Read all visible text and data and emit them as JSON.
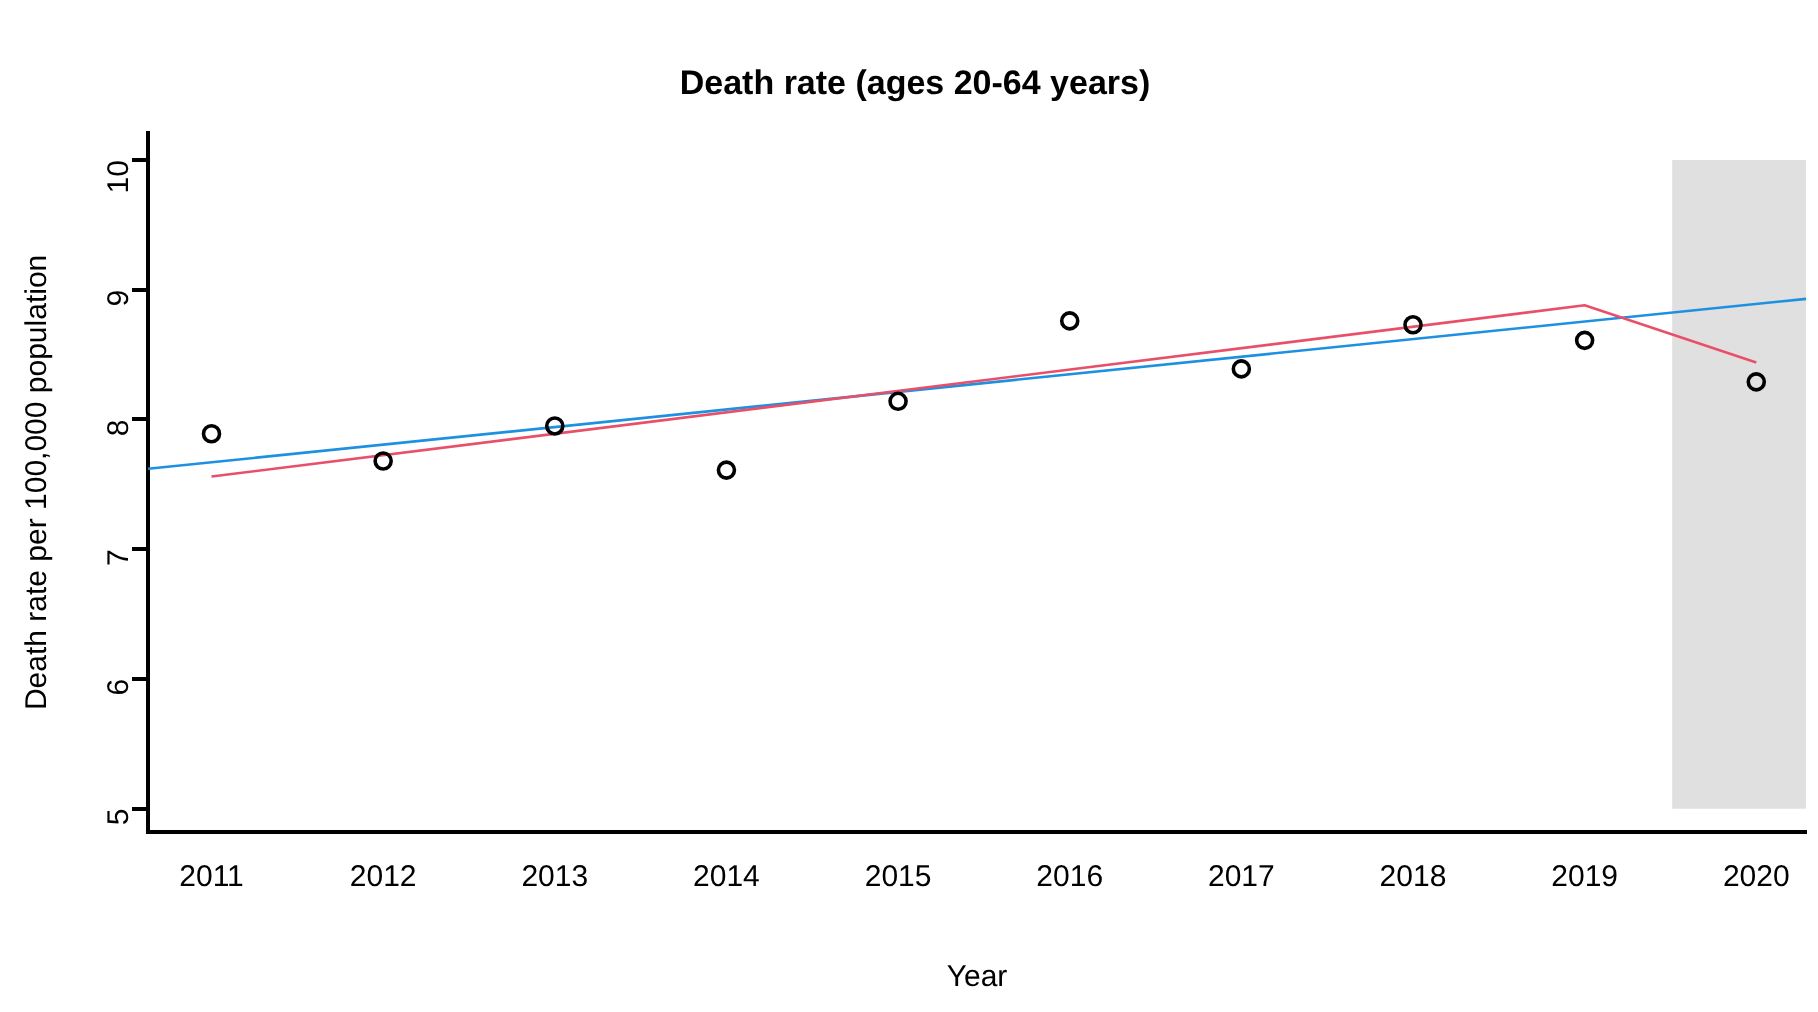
{
  "chart_data": {
    "type": "scatter",
    "title": "Death rate (ages 20-64 years)",
    "xlabel": "Year",
    "ylabel": "Death rate per 100,000 population",
    "xlim": [
      2010.63,
      2020.29
    ],
    "xticks": [
      2011,
      2012,
      2013,
      2014,
      2015,
      2016,
      2017,
      2018,
      2019,
      2020
    ],
    "ylim": [
      4.82,
      10.21
    ],
    "yticks": [
      5,
      6,
      7,
      8,
      9,
      10
    ],
    "grid": false,
    "marker": "circle",
    "bands": [
      {
        "axis": "x",
        "from": 2019.51,
        "to": 2020.29,
        "color": "#e0e0e0"
      }
    ],
    "series": [
      {
        "color": "#000000",
        "x": [
          2011,
          2012,
          2013,
          2014,
          2015,
          2016,
          2017,
          2018,
          2019,
          2020
        ],
        "values": [
          7.89,
          7.68,
          7.95,
          7.61,
          8.14,
          8.76,
          8.39,
          8.73,
          8.61,
          8.29
        ]
      },
      {
        "type": "line",
        "marker": "none",
        "color": "#e8506a",
        "x": [
          2011,
          2019,
          2020
        ],
        "values": [
          7.56,
          8.88,
          8.44
        ]
      },
      {
        "type": "line",
        "marker": "none",
        "color": "#1e90e0",
        "x": [
          2010.63,
          2020.29
        ],
        "values": [
          7.62,
          8.93
        ]
      }
    ]
  }
}
